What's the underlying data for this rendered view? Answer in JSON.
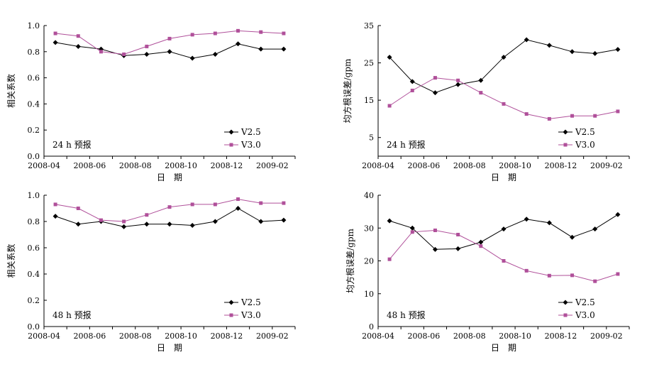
{
  "colors": {
    "v25": "#000000",
    "v30": "#b0509a",
    "axis": "#000000"
  },
  "chart_data": [
    {
      "type": "line",
      "title": "",
      "annotation": "24 h 预报",
      "xlabel": "日　期",
      "ylabel": "相关系数",
      "xticks": [
        "2008-04",
        "2008-06",
        "2008-08",
        "2008-10",
        "2008-12",
        "2009-02"
      ],
      "yticks": [
        "0.0",
        "0.2",
        "0.4",
        "0.6",
        "0.8",
        "1.0"
      ],
      "ylim": [
        0,
        1.0
      ],
      "ystep": 0.2,
      "x": [
        1,
        2,
        3,
        4,
        5,
        6,
        7,
        8,
        9,
        10,
        11
      ],
      "series": [
        {
          "name": "V2.5",
          "values": [
            0.87,
            0.84,
            0.82,
            0.77,
            0.78,
            0.8,
            0.75,
            0.78,
            0.86,
            0.82,
            0.82
          ]
        },
        {
          "name": "V3.0",
          "values": [
            0.94,
            0.92,
            0.8,
            0.78,
            0.84,
            0.9,
            0.93,
            0.94,
            0.96,
            0.95,
            0.94
          ]
        }
      ]
    },
    {
      "type": "line",
      "title": "",
      "annotation": "24 h 预报",
      "xlabel": "日　期",
      "ylabel": "均方根误差/gpm",
      "xticks": [
        "2008-04",
        "2008-06",
        "2008-08",
        "2008-10",
        "2008-12",
        "2009-02"
      ],
      "yticks": [
        "5",
        "15",
        "25",
        "35"
      ],
      "ylim": [
        0,
        35
      ],
      "ystep": 10,
      "ystart": 5,
      "x": [
        1,
        2,
        3,
        4,
        5,
        6,
        7,
        8,
        9,
        10,
        11
      ],
      "series": [
        {
          "name": "V2.5",
          "values": [
            26.5,
            20,
            17,
            19.2,
            20.3,
            26.5,
            31.2,
            29.7,
            28.0,
            27.5,
            28.6
          ]
        },
        {
          "name": "V3.0",
          "values": [
            13.5,
            17.6,
            21.0,
            20.3,
            17.0,
            14.0,
            11.3,
            10.0,
            10.8,
            10.8,
            12.0
          ]
        }
      ]
    },
    {
      "type": "line",
      "title": "",
      "annotation": "48 h 预报",
      "xlabel": "日　期",
      "ylabel": "相关系数",
      "xticks": [
        "2008-04",
        "2008-06",
        "2008-08",
        "2008-10",
        "2008-12",
        "2009-02"
      ],
      "yticks": [
        "0.0",
        "0.2",
        "0.4",
        "0.6",
        "0.8",
        "1.0"
      ],
      "ylim": [
        0,
        1.0
      ],
      "ystep": 0.2,
      "x": [
        1,
        2,
        3,
        4,
        5,
        6,
        7,
        8,
        9,
        10,
        11
      ],
      "series": [
        {
          "name": "V2.5",
          "values": [
            0.84,
            0.78,
            0.8,
            0.76,
            0.78,
            0.78,
            0.77,
            0.8,
            0.9,
            0.8,
            0.81
          ]
        },
        {
          "name": "V3.0",
          "values": [
            0.93,
            0.9,
            0.81,
            0.8,
            0.85,
            0.91,
            0.93,
            0.93,
            0.97,
            0.94,
            0.94
          ]
        }
      ]
    },
    {
      "type": "line",
      "title": "",
      "annotation": "48 h 预报",
      "xlabel": "日　期",
      "ylabel": "均方根误差/gpm",
      "xticks": [
        "2008-04",
        "2008-06",
        "2008-08",
        "2008-10",
        "2008-12",
        "2009-02"
      ],
      "yticks": [
        "0",
        "10",
        "20",
        "30",
        "40"
      ],
      "ylim": [
        0,
        40
      ],
      "ystep": 10,
      "ystart": 0,
      "x": [
        1,
        2,
        3,
        4,
        5,
        6,
        7,
        8,
        9,
        10,
        11
      ],
      "series": [
        {
          "name": "V2.5",
          "values": [
            32.2,
            30.0,
            23.5,
            23.7,
            25.7,
            29.7,
            32.7,
            31.6,
            27.2,
            29.7,
            34.1
          ]
        },
        {
          "name": "V3.0",
          "values": [
            20.5,
            28.8,
            29.3,
            28.0,
            24.5,
            20.0,
            17.0,
            15.5,
            15.6,
            13.8,
            16.0
          ]
        }
      ]
    }
  ]
}
